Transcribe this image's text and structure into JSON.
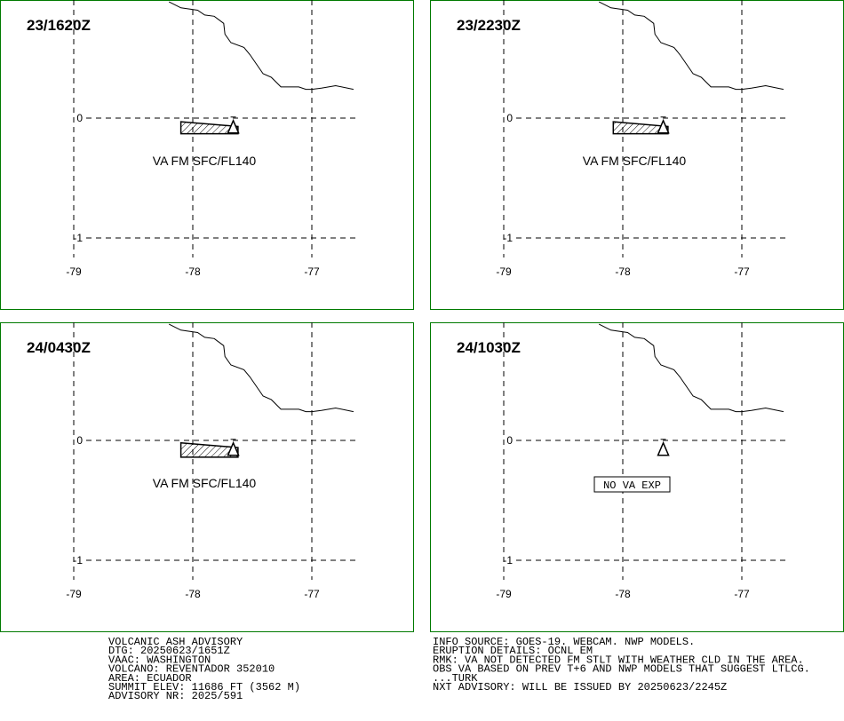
{
  "colors": {
    "frame": "#007a00",
    "ink": "#000000",
    "background": "#ffffff"
  },
  "axes": {
    "lon_ticks": [
      -79,
      -78,
      -77
    ],
    "lon_labels": [
      "-79",
      "-78",
      "-77"
    ],
    "lat_ticks": [
      0,
      -1
    ],
    "lat_labels": [
      "0",
      "-1"
    ],
    "lon_range": [
      -79.15,
      -76.6
    ],
    "lat_range": [
      1.0,
      -1.35
    ]
  },
  "volcano": {
    "name": "REVENTADOR",
    "lon": -77.66,
    "lat": -0.08,
    "icon": "volcano-triangle-icon"
  },
  "coastline": [
    [
      -78.2,
      0.97
    ],
    [
      -78.1,
      0.92
    ],
    [
      -77.96,
      0.9
    ],
    [
      -77.9,
      0.86
    ],
    [
      -77.82,
      0.85
    ],
    [
      -77.74,
      0.79
    ],
    [
      -77.73,
      0.7
    ],
    [
      -77.68,
      0.63
    ],
    [
      -77.57,
      0.59
    ],
    [
      -77.52,
      0.53
    ],
    [
      -77.41,
      0.37
    ],
    [
      -77.34,
      0.34
    ],
    [
      -77.26,
      0.26
    ],
    [
      -77.11,
      0.26
    ],
    [
      -77.05,
      0.24
    ],
    [
      -77.0,
      0.24
    ],
    [
      -76.92,
      0.25
    ],
    [
      -76.8,
      0.27
    ],
    [
      -76.65,
      0.24
    ]
  ],
  "panels": [
    {
      "time": "23/1620Z",
      "polygon": [
        [
          -78.1,
          -0.03
        ],
        [
          -77.62,
          -0.07
        ],
        [
          -77.62,
          -0.13
        ],
        [
          -78.1,
          -0.13
        ]
      ],
      "label": "VA FM SFC/FL140",
      "no_va": false
    },
    {
      "time": "23/2230Z",
      "polygon": [
        [
          -78.08,
          -0.03
        ],
        [
          -77.62,
          -0.07
        ],
        [
          -77.62,
          -0.13
        ],
        [
          -78.08,
          -0.13
        ]
      ],
      "label": "VA FM SFC/FL140",
      "no_va": false
    },
    {
      "time": "24/0430Z",
      "polygon": [
        [
          -78.1,
          -0.02
        ],
        [
          -77.62,
          -0.06
        ],
        [
          -77.62,
          -0.14
        ],
        [
          -78.1,
          -0.14
        ]
      ],
      "label": "VA FM SFC/FL140",
      "no_va": false
    },
    {
      "time": "24/1030Z",
      "polygon": [],
      "label": "NO VA EXP",
      "no_va": true
    }
  ],
  "footer_left": [
    "VOLCANIC ASH ADVISORY",
    "DTG: 20250623/1651Z",
    "VAAC: WASHINGTON",
    "VOLCANO: REVENTADOR 352010",
    "AREA: ECUADOR",
    "SUMMIT ELEV: 11686 FT (3562 M)",
    "ADVISORY NR: 2025/591"
  ],
  "footer_right": [
    "INFO SOURCE: GOES-19. WEBCAM. NWP MODELS.",
    "ERUPTION DETAILS: OCNL EM",
    "RMK: VA NOT DETECTED FM STLT WITH WEATHER CLD IN THE AREA.",
    "OBS VA BASED ON PREV T+6 AND NWP MODELS THAT SUGGEST LTLCG.",
    "...TURK",
    "NXT ADVISORY: WILL BE ISSUED BY 20250623/2245Z"
  ]
}
